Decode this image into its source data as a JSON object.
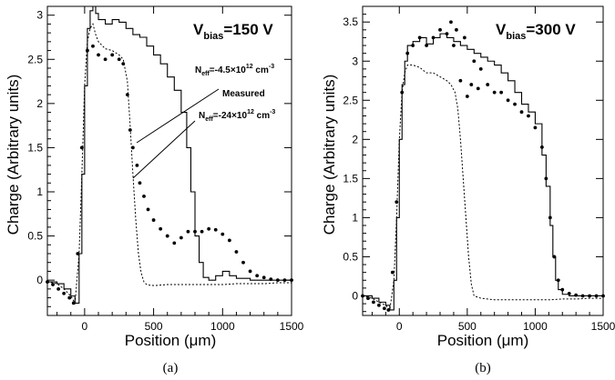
{
  "chart_data": [
    {
      "id": "a",
      "type": "line",
      "panel_caption": "(a)",
      "xlabel": "Position (μm)",
      "ylabel": "Charge (Arbitrary units)",
      "xlim": [
        -270,
        1500
      ],
      "ylim": [
        -0.4,
        3.1
      ],
      "xticks": [
        0,
        500,
        1000,
        1500
      ],
      "xtick_labels": [
        "0",
        "500",
        "1000",
        "1500"
      ],
      "yticks": [
        0,
        0.5,
        1,
        1.5,
        2,
        2.5,
        3
      ],
      "ytick_labels": [
        "0",
        "0.5",
        "1",
        "1.5",
        "2",
        "2.5",
        "3"
      ],
      "bias": {
        "main": "V",
        "sub": "bias",
        "value": "=150 V"
      },
      "annotations": [
        {
          "main": "N",
          "sub": "eff",
          "text": "=-4.5×10",
          "sup": "12",
          "unit": " cm",
          "unitsup": "-3"
        },
        {
          "text": "Measured"
        },
        {
          "main": "N",
          "sub": "eff",
          "text": "=-24×10",
          "sup": "12",
          "unit": " cm",
          "unitsup": "-3"
        }
      ],
      "series": [
        {
          "style": "solid-step",
          "x": [
            -270,
            -200,
            -150,
            -100,
            -70,
            -40,
            -20,
            0,
            20,
            40,
            60,
            80,
            100,
            150,
            200,
            250,
            300,
            350,
            400,
            450,
            500,
            550,
            600,
            650,
            700,
            740,
            770,
            800,
            830,
            860,
            900,
            950,
            1000,
            1050,
            1100,
            1200,
            1300,
            1400,
            1500
          ],
          "y": [
            -0.02,
            -0.04,
            -0.1,
            -0.18,
            -0.26,
            0.3,
            1.2,
            2.2,
            2.85,
            3.05,
            3.1,
            3.02,
            2.95,
            2.9,
            2.95,
            2.92,
            2.85,
            2.78,
            2.75,
            2.65,
            2.55,
            2.45,
            2.3,
            2.15,
            1.9,
            1.5,
            1.0,
            0.5,
            0.2,
            0.03,
            0.0,
            0.05,
            0.1,
            0.05,
            0.02,
            0.0,
            0.0,
            0.0,
            0.0
          ]
        },
        {
          "style": "dashed",
          "x": [
            -270,
            -200,
            -150,
            -100,
            -70,
            -40,
            -20,
            0,
            20,
            40,
            60,
            80,
            100,
            150,
            200,
            250,
            280,
            310,
            330,
            350,
            370,
            390,
            410,
            430,
            450,
            480,
            520,
            600,
            700,
            800,
            900,
            1000,
            1100,
            1200,
            1300,
            1400,
            1500
          ],
          "y": [
            -0.02,
            -0.04,
            -0.1,
            -0.18,
            -0.26,
            0.3,
            1.2,
            2.2,
            2.7,
            2.85,
            2.9,
            2.78,
            2.7,
            2.62,
            2.6,
            2.55,
            2.5,
            2.25,
            1.75,
            1.2,
            0.7,
            0.3,
            0.08,
            -0.02,
            -0.05,
            -0.06,
            -0.06,
            -0.05,
            -0.05,
            -0.05,
            -0.05,
            -0.05,
            -0.04,
            -0.04,
            -0.04,
            -0.03,
            -0.03
          ]
        },
        {
          "style": "dots",
          "x": [
            -270,
            -230,
            -190,
            -150,
            -110,
            -80,
            -50,
            -20,
            20,
            60,
            100,
            150,
            200,
            250,
            280,
            310,
            330,
            350,
            380,
            400,
            430,
            460,
            500,
            550,
            600,
            650,
            700,
            750,
            800,
            850,
            900,
            950,
            1000,
            1050,
            1100,
            1150,
            1200,
            1250,
            1300,
            1350,
            1400,
            1450,
            1500
          ],
          "y": [
            -0.02,
            -0.05,
            -0.1,
            -0.15,
            -0.2,
            -0.26,
            0.3,
            1.5,
            2.6,
            2.65,
            2.55,
            2.5,
            2.55,
            2.5,
            2.45,
            2.1,
            1.7,
            1.5,
            1.3,
            1.1,
            0.95,
            0.8,
            0.68,
            0.58,
            0.5,
            0.42,
            0.48,
            0.55,
            0.55,
            0.55,
            0.58,
            0.57,
            0.52,
            0.45,
            0.32,
            0.2,
            0.1,
            0.05,
            0.03,
            0.01,
            0.0,
            0.0,
            0.0
          ]
        }
      ]
    },
    {
      "id": "b",
      "type": "line",
      "panel_caption": "(b)",
      "xlabel": "Position (μm)",
      "ylabel": "Charge (Arbitrary units)",
      "xlim": [
        -270,
        1500
      ],
      "ylim": [
        -0.25,
        3.7
      ],
      "xticks": [
        0,
        500,
        1000,
        1500
      ],
      "xtick_labels": [
        "0",
        "500",
        "1000",
        "1500"
      ],
      "yticks": [
        0,
        0.5,
        1,
        1.5,
        2,
        2.5,
        3,
        3.5
      ],
      "ytick_labels": [
        "0",
        "0.5",
        "1",
        "1.5",
        "2",
        "2.5",
        "3",
        "3.5"
      ],
      "bias": {
        "main": "V",
        "sub": "bias",
        "value": "=300 V"
      },
      "annotations": [],
      "series": [
        {
          "style": "solid-step",
          "x": [
            -270,
            -200,
            -150,
            -100,
            -70,
            -40,
            -20,
            0,
            20,
            40,
            60,
            100,
            150,
            200,
            250,
            300,
            350,
            400,
            450,
            500,
            550,
            600,
            650,
            700,
            750,
            800,
            850,
            900,
            950,
            1000,
            1050,
            1080,
            1110,
            1130,
            1150,
            1170,
            1200,
            1250,
            1300,
            1400,
            1500
          ],
          "y": [
            0.0,
            -0.03,
            -0.08,
            -0.12,
            -0.18,
            0.2,
            1.0,
            2.0,
            2.7,
            3.0,
            3.2,
            3.25,
            3.3,
            3.22,
            3.3,
            3.35,
            3.3,
            3.25,
            3.2,
            3.15,
            3.1,
            3.05,
            3.0,
            2.95,
            2.85,
            2.75,
            2.6,
            2.45,
            2.35,
            2.2,
            1.8,
            1.4,
            0.9,
            0.5,
            0.2,
            0.08,
            0.02,
            0.0,
            0.0,
            0.0,
            0.0
          ]
        },
        {
          "style": "dashed",
          "x": [
            -270,
            -200,
            -150,
            -100,
            -70,
            -40,
            -20,
            0,
            20,
            40,
            60,
            100,
            150,
            200,
            250,
            300,
            350,
            380,
            410,
            430,
            450,
            470,
            490,
            510,
            530,
            550,
            600,
            700,
            800,
            900,
            1000,
            1100,
            1200,
            1300,
            1400,
            1500
          ],
          "y": [
            0.0,
            -0.03,
            -0.08,
            -0.12,
            -0.18,
            0.2,
            1.0,
            2.0,
            2.6,
            2.85,
            2.95,
            2.95,
            2.92,
            2.85,
            2.85,
            2.8,
            2.75,
            2.7,
            2.6,
            2.4,
            2.0,
            1.5,
            1.0,
            0.5,
            0.15,
            0.0,
            -0.03,
            -0.05,
            -0.05,
            -0.05,
            -0.05,
            -0.05,
            -0.04,
            -0.04,
            -0.03,
            -0.03
          ]
        },
        {
          "style": "dots",
          "x": [
            -270,
            -230,
            -190,
            -150,
            -110,
            -80,
            -50,
            -20,
            20,
            60,
            100,
            150,
            200,
            250,
            300,
            350,
            380,
            400,
            420,
            450,
            480,
            500,
            530,
            550,
            580,
            600,
            650,
            700,
            750,
            800,
            850,
            900,
            950,
            1000,
            1050,
            1080,
            1110,
            1140,
            1170,
            1200,
            1250,
            1300,
            1350,
            1400,
            1450,
            1500
          ],
          "y": [
            0.0,
            -0.03,
            -0.08,
            -0.12,
            -0.16,
            -0.18,
            0.3,
            1.2,
            2.6,
            3.1,
            3.2,
            3.3,
            3.2,
            3.3,
            3.4,
            3.35,
            3.5,
            3.2,
            3.4,
            2.75,
            3.3,
            2.55,
            2.7,
            3.0,
            2.65,
            2.9,
            2.7,
            2.6,
            2.6,
            2.5,
            2.45,
            2.35,
            2.3,
            2.15,
            1.9,
            1.5,
            1.0,
            0.5,
            0.2,
            0.08,
            0.03,
            0.01,
            0.0,
            0.0,
            0.0,
            0.0
          ]
        }
      ]
    }
  ]
}
